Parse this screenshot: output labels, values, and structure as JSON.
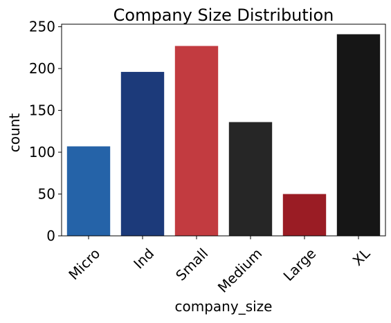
{
  "chart_data": {
    "type": "bar",
    "title": "Company Size Distribution",
    "xlabel": "company_size",
    "ylabel": "count",
    "categories": [
      "Micro",
      "Ind",
      "Small",
      "Medium",
      "Large",
      "XL"
    ],
    "values": [
      107,
      196,
      227,
      136,
      50,
      241
    ],
    "colors": [
      "#2563a8",
      "#1c3a7a",
      "#c23b40",
      "#262626",
      "#9a1c24",
      "#161616"
    ],
    "ylim": [
      0,
      253
    ],
    "yticks": [
      0,
      50,
      100,
      150,
      200,
      250
    ],
    "grid": false,
    "legend": "none"
  }
}
